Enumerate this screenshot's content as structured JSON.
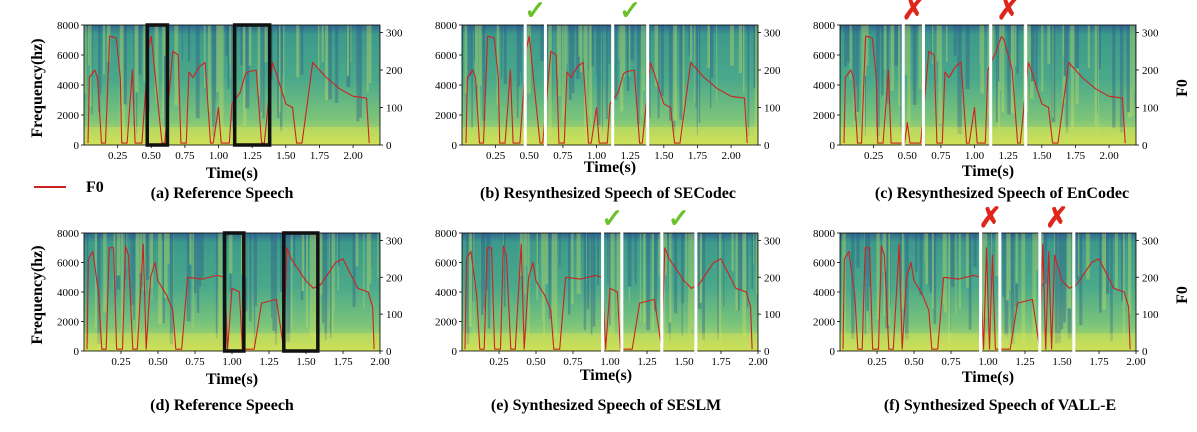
{
  "figure": {
    "legend": {
      "label": "F0",
      "color": "#cc2222"
    },
    "colors": {
      "f0_line": "#cc2222",
      "box_black": "#111111",
      "box_white": "#ffffff",
      "check": "#6cc02a",
      "cross": "#e0261c"
    },
    "symbols": {
      "check": "✓",
      "cross": "✗"
    }
  },
  "chart_data": [
    {
      "type": "heatmap",
      "caption": "(a) Reference Speech",
      "xlabel": "Time(s)",
      "ylabel": "Frequency(hz)",
      "ylabel_right": "",
      "xlim": [
        0,
        2.2
      ],
      "ylim": [
        0,
        8000
      ],
      "ylim_right": [
        0,
        320
      ],
      "xticks": [
        "0.25",
        "0.50",
        "0.75",
        "1.00",
        "1.25",
        "1.50",
        "1.75",
        "2.00"
      ],
      "yticks": [
        "0",
        "2000",
        "4000",
        "6000",
        "8000"
      ],
      "yticks_right": [
        "0",
        "100",
        "200",
        "300"
      ],
      "highlight_style": "black",
      "marks": [],
      "highlight_regions": [
        [
          0.47,
          0.62
        ],
        [
          1.12,
          1.38
        ]
      ],
      "f0_contour": {
        "t": [
          0.03,
          0.04,
          0.08,
          0.1,
          0.13,
          0.16,
          0.19,
          0.2,
          0.24,
          0.27,
          0.28,
          0.32,
          0.36,
          0.38,
          0.43,
          0.48,
          0.5,
          0.55,
          0.58,
          0.6,
          0.66,
          0.7,
          0.72,
          0.76,
          0.78,
          0.81,
          0.86,
          0.9,
          0.94,
          0.96,
          1.0,
          1.02,
          1.08,
          1.1,
          1.16,
          1.2,
          1.22,
          1.28,
          1.32,
          1.34,
          1.4,
          1.43,
          1.5,
          1.55,
          1.58,
          1.62,
          1.7,
          1.8,
          1.9,
          2.0,
          2.1,
          2.12
        ],
        "f0": [
          5,
          180,
          200,
          180,
          5,
          5,
          290,
          290,
          285,
          180,
          5,
          5,
          200,
          5,
          5,
          260,
          290,
          110,
          5,
          5,
          250,
          240,
          5,
          5,
          195,
          180,
          210,
          220,
          5,
          5,
          100,
          5,
          5,
          110,
          140,
          190,
          195,
          200,
          5,
          5,
          220,
          190,
          110,
          100,
          5,
          5,
          220,
          180,
          150,
          130,
          125,
          5
        ]
      }
    },
    {
      "type": "heatmap",
      "caption": "(b) Resynthesized Speech of SECodec",
      "xlabel": "Time(s)",
      "ylabel": "",
      "ylabel_right": "",
      "xlim": [
        0,
        2.2
      ],
      "ylim": [
        0,
        8000
      ],
      "ylim_right": [
        0,
        320
      ],
      "xticks": [
        "0.25",
        "0.50",
        "0.75",
        "1.00",
        "1.25",
        "1.50",
        "1.75",
        "2.00"
      ],
      "yticks": [
        "0",
        "2000",
        "4000",
        "6000",
        "8000"
      ],
      "yticks_right": [
        "0",
        "100",
        "200",
        "300"
      ],
      "highlight_style": "white",
      "marks": [
        "check",
        "check"
      ],
      "highlight_regions": [
        [
          0.47,
          0.62
        ],
        [
          1.12,
          1.38
        ]
      ],
      "f0_contour": {
        "t": [
          0.03,
          0.04,
          0.08,
          0.1,
          0.13,
          0.16,
          0.19,
          0.2,
          0.24,
          0.27,
          0.28,
          0.32,
          0.36,
          0.38,
          0.43,
          0.48,
          0.5,
          0.55,
          0.58,
          0.6,
          0.66,
          0.7,
          0.72,
          0.76,
          0.78,
          0.81,
          0.86,
          0.9,
          0.94,
          0.96,
          1.0,
          1.02,
          1.08,
          1.1,
          1.16,
          1.2,
          1.22,
          1.28,
          1.32,
          1.34,
          1.4,
          1.43,
          1.5,
          1.55,
          1.58,
          1.62,
          1.7,
          1.8,
          1.9,
          2.0,
          2.1,
          2.12
        ],
        "f0": [
          5,
          180,
          200,
          180,
          5,
          5,
          290,
          290,
          285,
          180,
          5,
          5,
          200,
          5,
          5,
          260,
          290,
          110,
          5,
          5,
          250,
          240,
          5,
          5,
          195,
          180,
          210,
          220,
          5,
          5,
          100,
          5,
          5,
          110,
          140,
          190,
          195,
          200,
          5,
          5,
          220,
          190,
          110,
          100,
          5,
          5,
          220,
          180,
          150,
          130,
          125,
          5
        ]
      }
    },
    {
      "type": "heatmap",
      "caption": "(c) Resynthesized Speech of EnCodec",
      "xlabel": "Time(s)",
      "ylabel": "",
      "ylabel_right": "F0",
      "xlim": [
        0,
        2.2
      ],
      "ylim": [
        0,
        8000
      ],
      "ylim_right": [
        0,
        320
      ],
      "xticks": [
        "0.25",
        "0.50",
        "0.75",
        "1.00",
        "1.25",
        "1.50",
        "1.75",
        "2.00"
      ],
      "yticks": [
        "0",
        "2000",
        "4000",
        "6000",
        "8000"
      ],
      "yticks_right": [
        "0",
        "100",
        "200",
        "300"
      ],
      "highlight_style": "white",
      "marks": [
        "cross",
        "cross"
      ],
      "highlight_regions": [
        [
          0.47,
          0.62
        ],
        [
          1.12,
          1.38
        ]
      ],
      "f0_contour": {
        "t": [
          0.03,
          0.04,
          0.08,
          0.1,
          0.13,
          0.16,
          0.19,
          0.2,
          0.24,
          0.27,
          0.28,
          0.32,
          0.36,
          0.38,
          0.43,
          0.48,
          0.5,
          0.52,
          0.55,
          0.58,
          0.6,
          0.66,
          0.7,
          0.72,
          0.76,
          0.78,
          0.81,
          0.86,
          0.9,
          0.94,
          0.96,
          1.0,
          1.02,
          1.08,
          1.1,
          1.16,
          1.2,
          1.22,
          1.28,
          1.32,
          1.34,
          1.4,
          1.43,
          1.5,
          1.55,
          1.58,
          1.62,
          1.7,
          1.8,
          1.9,
          2.0,
          2.1,
          2.12
        ],
        "f0": [
          5,
          180,
          200,
          180,
          5,
          5,
          290,
          290,
          285,
          180,
          5,
          5,
          200,
          5,
          5,
          5,
          60,
          5,
          5,
          5,
          5,
          250,
          240,
          5,
          5,
          195,
          180,
          210,
          220,
          5,
          5,
          100,
          5,
          5,
          200,
          250,
          290,
          280,
          200,
          5,
          5,
          220,
          190,
          110,
          100,
          5,
          5,
          220,
          180,
          150,
          130,
          125,
          5
        ]
      }
    },
    {
      "type": "heatmap",
      "caption": "(d) Reference Speech",
      "xlabel": "Time(s)",
      "ylabel": "Frequency(hz)",
      "ylabel_right": "",
      "xlim": [
        0,
        2.0
      ],
      "ylim": [
        0,
        8000
      ],
      "ylim_right": [
        0,
        320
      ],
      "xticks": [
        "0.25",
        "0.50",
        "0.75",
        "1.00",
        "1.25",
        "1.50",
        "1.75",
        "2.00"
      ],
      "yticks": [
        "0",
        "2000",
        "4000",
        "6000",
        "8000"
      ],
      "yticks_right": [
        "0",
        "100",
        "200",
        "300"
      ],
      "highlight_style": "black",
      "marks": [],
      "highlight_regions": [
        [
          0.95,
          1.08
        ],
        [
          1.35,
          1.58
        ]
      ],
      "f0_contour": {
        "t": [
          0.02,
          0.03,
          0.06,
          0.1,
          0.12,
          0.15,
          0.17,
          0.2,
          0.22,
          0.26,
          0.28,
          0.3,
          0.33,
          0.36,
          0.4,
          0.42,
          0.45,
          0.48,
          0.5,
          0.56,
          0.6,
          0.62,
          0.66,
          0.7,
          0.8,
          0.9,
          0.95,
          0.97,
          1.0,
          1.05,
          1.07,
          1.15,
          1.2,
          1.3,
          1.35,
          1.37,
          1.4,
          1.5,
          1.55,
          1.6,
          1.65,
          1.7,
          1.75,
          1.8,
          1.85,
          1.92,
          1.95,
          1.96
        ],
        "f0": [
          5,
          250,
          270,
          150,
          5,
          5,
          280,
          280,
          5,
          5,
          285,
          260,
          5,
          5,
          290,
          5,
          200,
          240,
          190,
          150,
          110,
          5,
          5,
          200,
          195,
          205,
          200,
          5,
          170,
          160,
          5,
          5,
          130,
          140,
          5,
          280,
          250,
          190,
          170,
          180,
          210,
          240,
          250,
          210,
          170,
          160,
          120,
          5
        ]
      }
    },
    {
      "type": "heatmap",
      "caption": "(e) Synthesized Speech of SESLM",
      "xlabel": "Time(s)",
      "ylabel": "",
      "ylabel_right": "",
      "xlim": [
        0,
        2.0
      ],
      "ylim": [
        0,
        8000
      ],
      "ylim_right": [
        0,
        320
      ],
      "xticks": [
        "0.25",
        "0.50",
        "0.75",
        "1.00",
        "1.25",
        "1.50",
        "1.75",
        "2.00"
      ],
      "yticks": [
        "0",
        "2000",
        "4000",
        "6000",
        "8000"
      ],
      "yticks_right": [
        "0",
        "100",
        "200",
        "300"
      ],
      "highlight_style": "white",
      "marks": [
        "check",
        "check"
      ],
      "highlight_regions": [
        [
          0.95,
          1.08
        ],
        [
          1.35,
          1.58
        ]
      ],
      "f0_contour": {
        "t": [
          0.02,
          0.03,
          0.06,
          0.1,
          0.12,
          0.15,
          0.17,
          0.2,
          0.22,
          0.26,
          0.28,
          0.3,
          0.33,
          0.36,
          0.4,
          0.42,
          0.45,
          0.48,
          0.5,
          0.56,
          0.6,
          0.62,
          0.66,
          0.7,
          0.8,
          0.9,
          0.95,
          0.97,
          1.0,
          1.05,
          1.07,
          1.15,
          1.2,
          1.3,
          1.35,
          1.37,
          1.4,
          1.5,
          1.55,
          1.6,
          1.65,
          1.7,
          1.75,
          1.8,
          1.85,
          1.92,
          1.95,
          1.96
        ],
        "f0": [
          5,
          250,
          270,
          150,
          5,
          5,
          280,
          280,
          5,
          5,
          285,
          260,
          5,
          5,
          290,
          5,
          200,
          240,
          190,
          150,
          110,
          5,
          5,
          200,
          195,
          205,
          200,
          5,
          170,
          160,
          5,
          5,
          130,
          140,
          5,
          280,
          250,
          190,
          170,
          180,
          210,
          240,
          250,
          210,
          170,
          160,
          120,
          5
        ]
      }
    },
    {
      "type": "heatmap",
      "caption": "(f) Synthesized Speech of VALL-E",
      "xlabel": "Time(s)",
      "ylabel": "",
      "ylabel_right": "F0",
      "xlim": [
        0,
        2.0
      ],
      "ylim": [
        0,
        8000
      ],
      "ylim_right": [
        0,
        320
      ],
      "xticks": [
        "0.25",
        "0.50",
        "0.75",
        "1.00",
        "1.25",
        "1.50",
        "1.75",
        "2.00"
      ],
      "yticks": [
        "0",
        "2000",
        "4000",
        "6000",
        "8000"
      ],
      "yticks_right": [
        "0",
        "100",
        "200",
        "300"
      ],
      "highlight_style": "white",
      "marks": [
        "cross",
        "cross"
      ],
      "highlight_regions": [
        [
          0.95,
          1.08
        ],
        [
          1.35,
          1.58
        ]
      ],
      "f0_contour": {
        "t": [
          0.02,
          0.03,
          0.06,
          0.1,
          0.12,
          0.15,
          0.17,
          0.2,
          0.22,
          0.26,
          0.28,
          0.3,
          0.33,
          0.36,
          0.4,
          0.42,
          0.45,
          0.48,
          0.5,
          0.56,
          0.6,
          0.62,
          0.66,
          0.7,
          0.8,
          0.9,
          0.95,
          0.97,
          0.99,
          1.01,
          1.03,
          1.05,
          1.07,
          1.15,
          1.2,
          1.3,
          1.35,
          1.37,
          1.39,
          1.41,
          1.43,
          1.45,
          1.5,
          1.55,
          1.6,
          1.65,
          1.7,
          1.75,
          1.8,
          1.85,
          1.92,
          1.95,
          1.96
        ],
        "f0": [
          5,
          250,
          270,
          150,
          5,
          5,
          280,
          280,
          5,
          5,
          285,
          260,
          5,
          5,
          290,
          5,
          200,
          240,
          190,
          150,
          110,
          5,
          5,
          200,
          195,
          205,
          200,
          5,
          280,
          5,
          260,
          5,
          5,
          5,
          130,
          140,
          5,
          290,
          5,
          270,
          5,
          260,
          190,
          170,
          180,
          210,
          240,
          250,
          210,
          170,
          160,
          120,
          5
        ]
      }
    }
  ]
}
